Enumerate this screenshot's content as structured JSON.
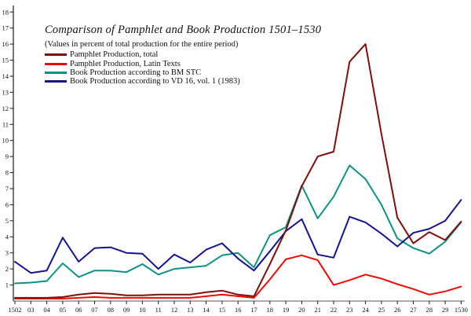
{
  "title": "Comparison of Pamphlet and Book Production 1501–1530",
  "subtitle": "(Values in percent of total production for the entire period)",
  "legend": {
    "items": [
      {
        "label": "Pamphlet Production, total",
        "color": "#7b100c"
      },
      {
        "label": "Pamphlet Production, Latin Texts",
        "color": "#f20800"
      },
      {
        "label": "Book Production according to BM STC",
        "color": "#0d9184"
      },
      {
        "label": "Book Production according to VD 16, vol. 1 (1983)",
        "color": "#16138f"
      }
    ]
  },
  "axes": {
    "y_tick_labels": [
      "1",
      "2",
      "3",
      "4",
      "5",
      "6",
      "7",
      "8",
      "9",
      "10",
      "11",
      "12",
      "13",
      "14",
      "15",
      "16",
      "17",
      "18"
    ],
    "x_tick_labels": [
      "1502",
      "03",
      "04",
      "05",
      "06",
      "07",
      "08",
      "09",
      "10",
      "11",
      "12",
      "13",
      "14",
      "15",
      "16",
      "17",
      "18",
      "19",
      "20",
      "21",
      "22",
      "23",
      "24",
      "25",
      "26",
      "27",
      "28",
      "29",
      "1530"
    ],
    "axis_color": "#1a1a1a",
    "baseline_color": "#8f8f8f"
  },
  "chart_data": {
    "type": "line",
    "title": "Comparison of Pamphlet and Book Production 1501–1530",
    "subtitle": "(Values in percent of total production for the entire period)",
    "xlabel": "",
    "ylabel": "",
    "x": [
      1502,
      1503,
      1504,
      1505,
      1506,
      1507,
      1508,
      1509,
      1510,
      1511,
      1512,
      1513,
      1514,
      1515,
      1516,
      1517,
      1518,
      1519,
      1520,
      1521,
      1522,
      1523,
      1524,
      1525,
      1526,
      1527,
      1528,
      1529,
      1530
    ],
    "ylim": [
      0,
      18.4
    ],
    "grid": false,
    "legend_position": "top-left",
    "series": [
      {
        "name": "Pamphlet Production, total",
        "color": "#7b100c",
        "values": [
          0.2,
          0.2,
          0.2,
          0.25,
          0.4,
          0.5,
          0.45,
          0.35,
          0.35,
          0.4,
          0.4,
          0.4,
          0.55,
          0.65,
          0.4,
          0.3,
          2.3,
          4.4,
          7.15,
          9.0,
          9.3,
          14.9,
          16.0,
          10.4,
          5.2,
          3.6,
          4.3,
          3.8,
          4.95
        ]
      },
      {
        "name": "Pamphlet Production, Latin Texts",
        "color": "#f20800",
        "values": [
          0.15,
          0.15,
          0.15,
          0.15,
          0.2,
          0.25,
          0.2,
          0.2,
          0.2,
          0.2,
          0.2,
          0.2,
          0.3,
          0.4,
          0.3,
          0.2,
          1.35,
          2.6,
          2.85,
          2.55,
          1.0,
          1.3,
          1.65,
          1.4,
          1.05,
          0.75,
          0.4,
          0.6,
          0.9
        ]
      },
      {
        "name": "Book Production according to BM STC",
        "color": "#0d9184",
        "values": [
          1.1,
          1.15,
          1.25,
          2.35,
          1.5,
          1.9,
          1.9,
          1.8,
          2.3,
          1.65,
          2.0,
          2.1,
          2.2,
          2.85,
          3.0,
          2.1,
          4.1,
          4.6,
          7.2,
          5.15,
          6.5,
          8.45,
          7.6,
          6.0,
          3.9,
          3.3,
          2.95,
          3.7,
          4.9
        ]
      },
      {
        "name": "Book Production according to VD 16, vol. 1 (1983)",
        "color": "#16138f",
        "values": [
          2.45,
          1.75,
          1.9,
          3.95,
          2.45,
          3.3,
          3.35,
          3.0,
          2.95,
          2.0,
          2.9,
          2.4,
          3.2,
          3.6,
          2.65,
          1.9,
          3.1,
          4.35,
          5.1,
          2.9,
          2.7,
          5.25,
          4.9,
          4.2,
          3.4,
          4.25,
          4.5,
          5.0,
          6.3
        ]
      }
    ]
  }
}
